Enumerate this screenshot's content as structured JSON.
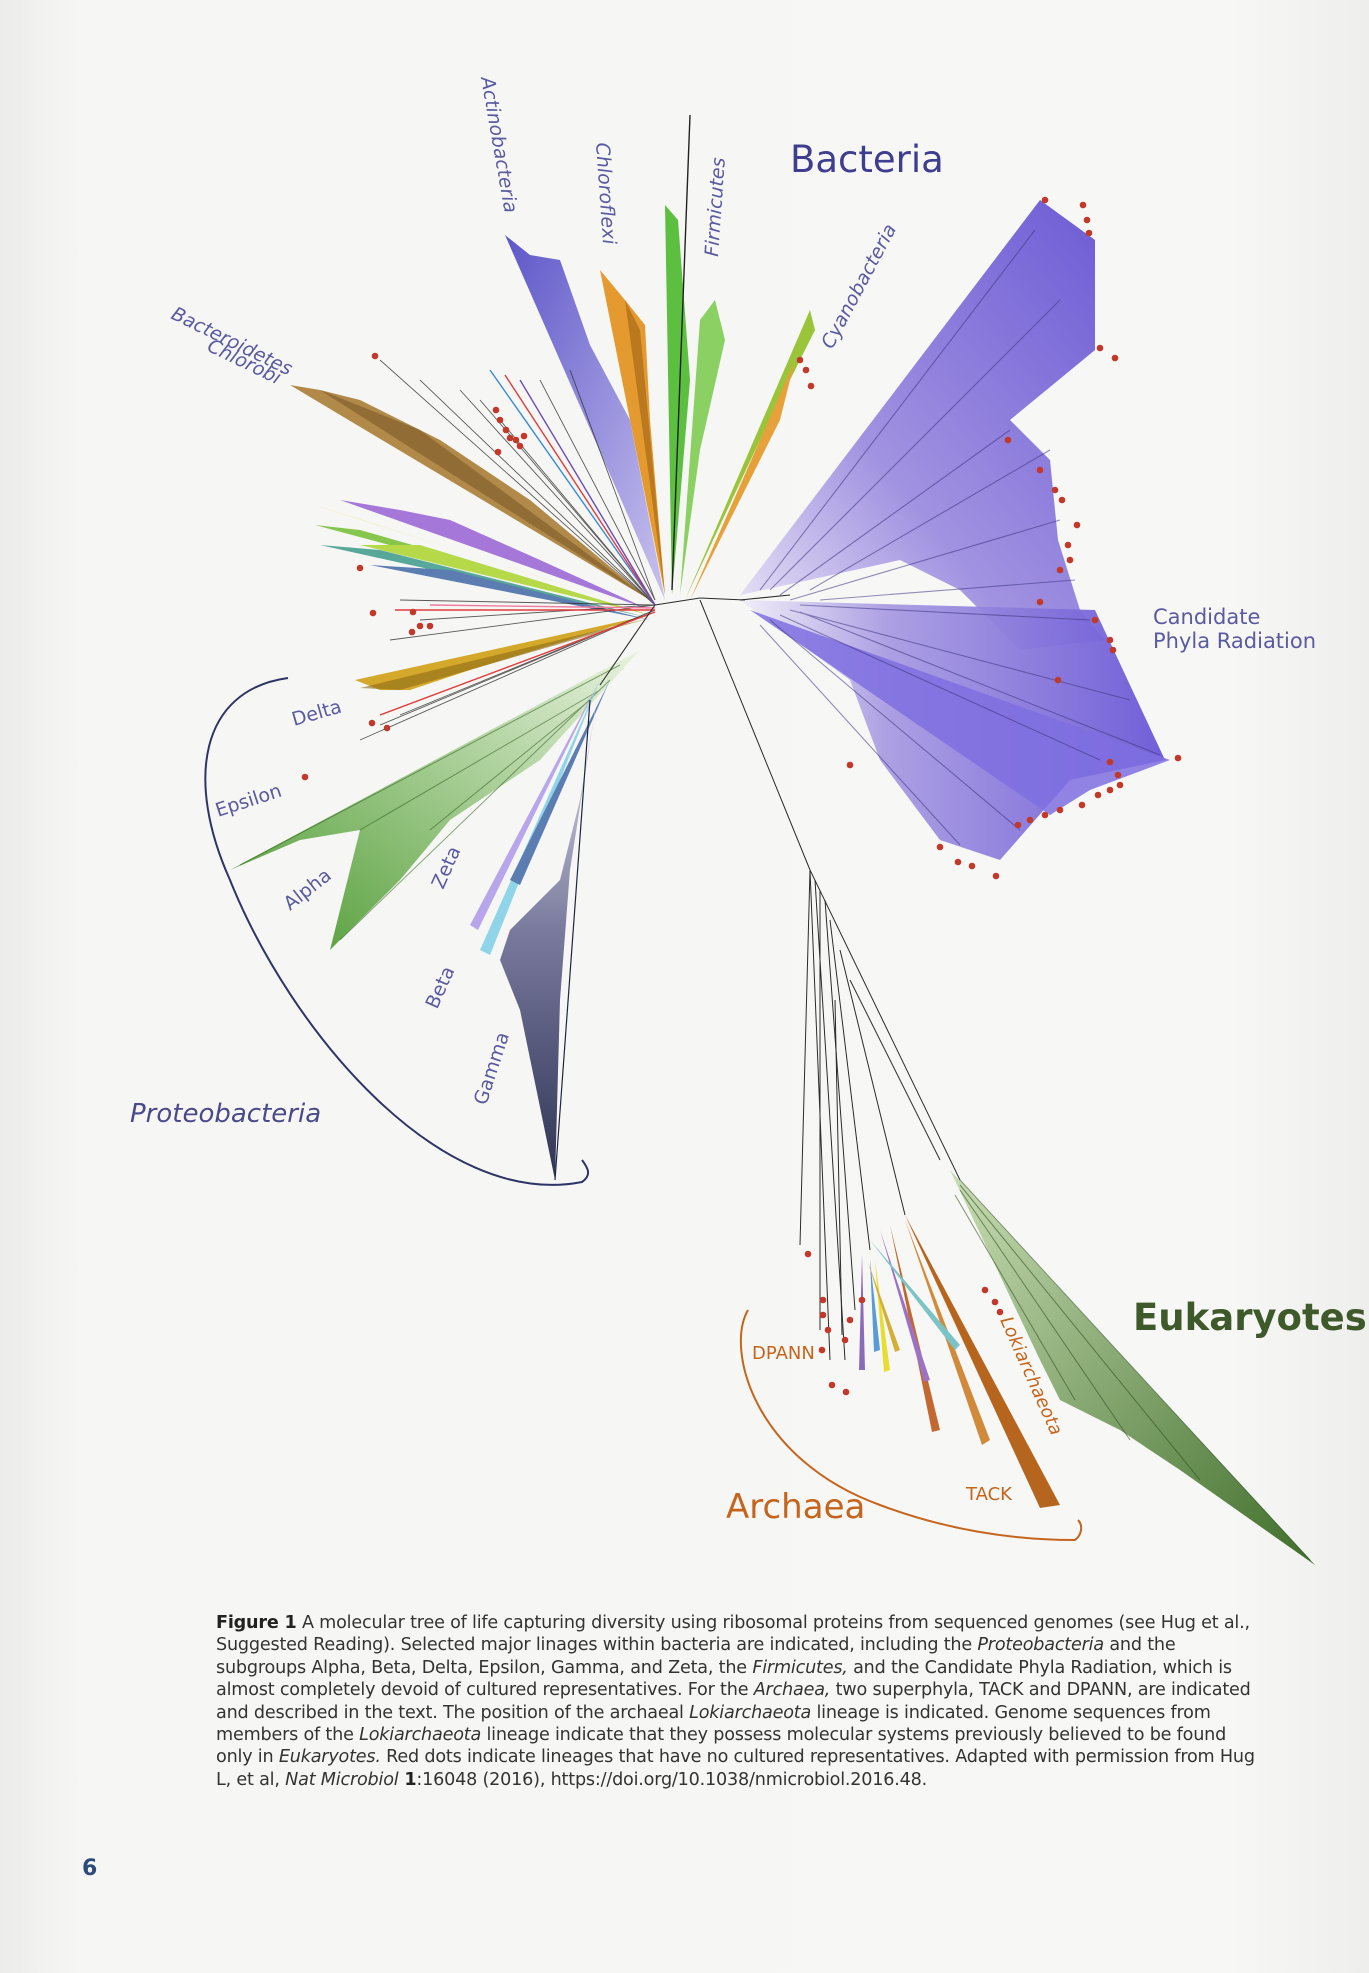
{
  "figure": {
    "labels": {
      "bacteria": "Bacteria",
      "eukaryotes": "Eukaryotes",
      "archaea": "Archaea",
      "cpr_line1": "Candidate",
      "cpr_line2": "Phyla Radiation",
      "proteobacteria": "Proteobacteria",
      "actinobacteria": "Actinobacteria",
      "chloroflexi": "Chloroflexi",
      "firmicutes": "Firmicutes",
      "cyanobacteria": "Cyanobacteria",
      "bacteroidetes_line1": "Bacteroidetes",
      "bacteroidetes_line2": "Chlorobi",
      "delta": "Delta",
      "epsilon": "Epsilon",
      "alpha": "Alpha",
      "zeta": "Zeta",
      "beta": "Beta",
      "gamma": "Gamma",
      "dpann": "DPANN",
      "tack": "TACK",
      "lokiarchaeota": "Lokiarchaeota"
    },
    "colors": {
      "bacteria_label": "#3f3d8f",
      "eukaryote_label": "#3f5a2a",
      "archaea_label": "#c5651d",
      "clade_label": "#5a5aa0",
      "red_dot": "#c0392b"
    }
  },
  "caption": {
    "label": "Figure 1",
    "text_1": " A molecular tree of life capturing diversity using ribosomal proteins from sequenced genomes (see Hug et al., Suggested Reading). Selected major linages within bacteria are indicated, including the ",
    "em_1": "Proteobacteria",
    "text_2": " and the subgroups Alpha, Beta, Delta, Epsilon, Gamma, and Zeta, the ",
    "em_2": "Firmicutes,",
    "text_3": " and the Candidate Phyla Radiation, which is almost completely devoid of cultured representatives. For the ",
    "em_3": "Archaea,",
    "text_4": " two superphyla, TACK and DPANN, are indicated and described in the text. The position of the archaeal ",
    "em_4": "Lokiarchaeota",
    "text_5": " lineage is indicated. Genome sequences from members of the ",
    "em_5": "Lokiarchaeota",
    "text_6": " lineage indicate that they possess molecular systems previously believed to be found only in ",
    "em_6": "Eukaryotes.",
    "text_7": " Red dots indicate lineages that have no cultured representatives. Adapted with permission from Hug L, et al, ",
    "em_7": "Nat Microbiol",
    "bold_1": " 1",
    "text_8": ":16048 (2016), https://doi.org/10.1038/nmicrobiol.2016.48."
  },
  "page_number": "6"
}
